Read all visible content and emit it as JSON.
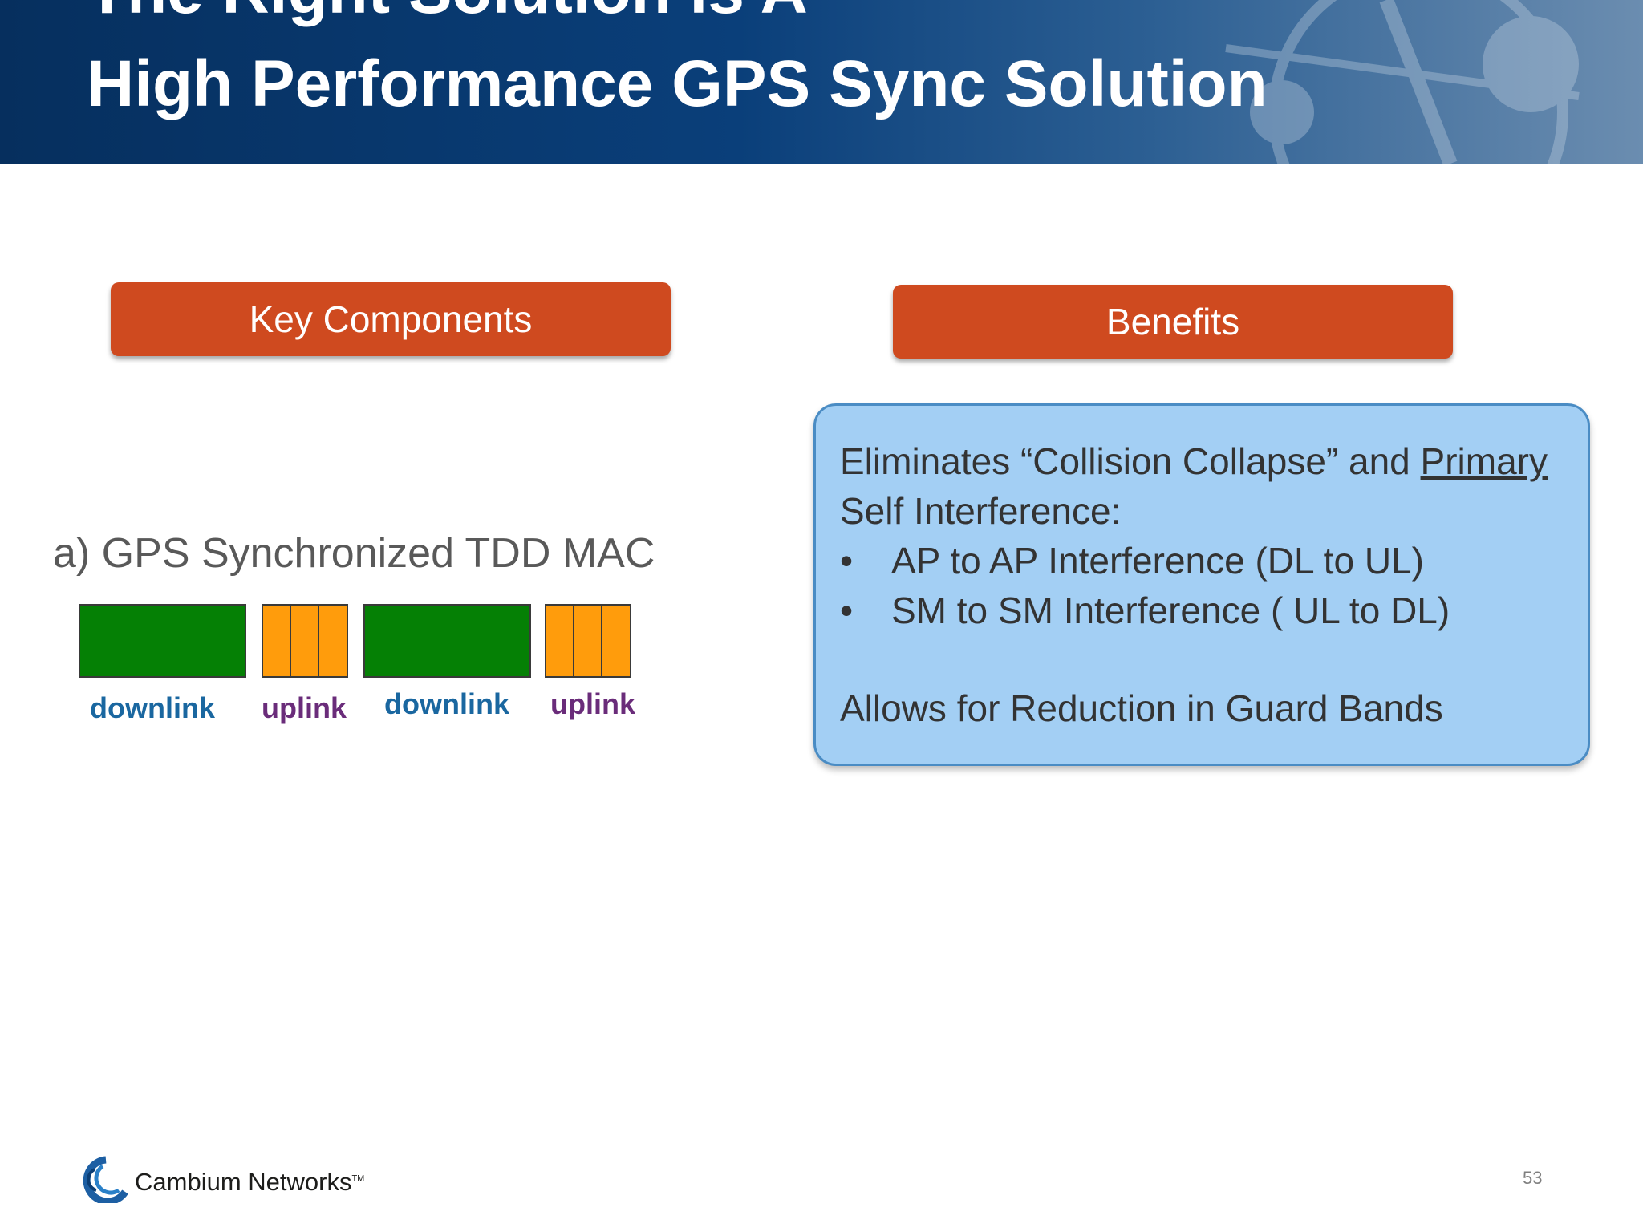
{
  "header": {
    "title_line1": "The Right Solution is A",
    "title_line2": "High Performance GPS Sync Solution"
  },
  "key_components": {
    "button_label": "Key Components",
    "item_label": "a) GPS Synchronized TDD MAC",
    "frame_labels": [
      "downlink",
      "uplink",
      "downlink",
      "uplink"
    ]
  },
  "benefits": {
    "button_label": "Benefits",
    "intro_part1": "Eliminates “Collision Collapse” and ",
    "intro_underlined": "Primary",
    "intro_part2": "Self Interference:",
    "bullet_char": "•",
    "bullets": [
      "AP to AP Interference (DL to UL)",
      "SM to SM Interference ( UL to DL)"
    ],
    "closing": "Allows for Reduction in Guard Bands"
  },
  "footer": {
    "brand": "Cambium Networks",
    "trademark": "TM",
    "page_number": "53"
  },
  "colors": {
    "header_blue": "#0a3f7a",
    "button_orange": "#cf4a1f",
    "benefits_fill": "#a3cff4",
    "downlink_green": "#058005",
    "uplink_orange": "#ff9c0c",
    "downlink_text": "#1a67a0",
    "uplink_text": "#6a2c7a"
  }
}
